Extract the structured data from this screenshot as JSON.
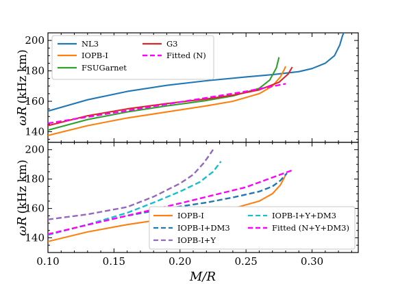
{
  "chart_data": [
    {
      "type": "line",
      "panel": "top",
      "xlabel": "M/R",
      "ylabel_math": "ωR",
      "ylabel_unit": "(kHz km)",
      "xlim": [
        0.1,
        0.335
      ],
      "ylim": [
        133,
        205
      ],
      "xticks": [
        "0.10",
        "0.15",
        "0.20",
        "0.25",
        "0.30"
      ],
      "yticks": [
        "140",
        "160",
        "180",
        "200"
      ],
      "legend_placement": "top-left",
      "series": [
        {
          "name": "NL3",
          "color": "#1f77b4",
          "dash": "solid",
          "points": [
            [
              0.1,
              153.5
            ],
            [
              0.13,
              161
            ],
            [
              0.16,
              166.5
            ],
            [
              0.19,
              170.5
            ],
            [
              0.22,
              173.5
            ],
            [
              0.25,
              176
            ],
            [
              0.27,
              177.5
            ],
            [
              0.29,
              179.5
            ],
            [
              0.3,
              181.5
            ],
            [
              0.31,
              185
            ],
            [
              0.317,
              190
            ],
            [
              0.321,
              197
            ],
            [
              0.323,
              203
            ],
            [
              0.325,
              207
            ]
          ]
        },
        {
          "name": "IOPB-I",
          "color": "#ff7f0e",
          "dash": "solid",
          "points": [
            [
              0.1,
              137.5
            ],
            [
              0.13,
              144
            ],
            [
              0.16,
              149
            ],
            [
              0.19,
              153
            ],
            [
              0.22,
              157
            ],
            [
              0.24,
              160
            ],
            [
              0.26,
              165
            ],
            [
              0.27,
              170
            ],
            [
              0.276,
              176
            ],
            [
              0.279,
              181
            ],
            [
              0.28,
              183
            ]
          ]
        },
        {
          "name": "FSUGarnet",
          "color": "#2ca02c",
          "dash": "solid",
          "points": [
            [
              0.1,
              141
            ],
            [
              0.13,
              148
            ],
            [
              0.16,
              153
            ],
            [
              0.19,
              157
            ],
            [
              0.22,
              160.5
            ],
            [
              0.24,
              163.5
            ],
            [
              0.26,
              168.5
            ],
            [
              0.268,
              174
            ],
            [
              0.273,
              182
            ],
            [
              0.275,
              189
            ]
          ]
        },
        {
          "name": "G3",
          "color": "#d62728",
          "dash": "solid",
          "points": [
            [
              0.1,
              144
            ],
            [
              0.13,
              150.5
            ],
            [
              0.16,
              155
            ],
            [
              0.19,
              158.5
            ],
            [
              0.22,
              161.5
            ],
            [
              0.24,
              164
            ],
            [
              0.26,
              167.5
            ],
            [
              0.275,
              172.5
            ],
            [
              0.282,
              178
            ],
            [
              0.285,
              182.5
            ]
          ]
        },
        {
          "name": "Fitted (N)",
          "color": "#ff00ff",
          "dash": "dashed",
          "points": [
            [
              0.1,
              145.5
            ],
            [
              0.15,
              152.5
            ],
            [
              0.2,
              159.5
            ],
            [
              0.25,
              166.5
            ],
            [
              0.28,
              171.5
            ]
          ]
        }
      ]
    },
    {
      "type": "line",
      "panel": "bottom",
      "xlabel": "M/R",
      "ylabel_math": "ωR",
      "ylabel_unit": "(kHz km)",
      "xlim": [
        0.1,
        0.335
      ],
      "ylim": [
        130,
        205
      ],
      "xticks": [
        "0.10",
        "0.15",
        "0.20",
        "0.25",
        "0.30"
      ],
      "yticks": [
        "140",
        "160",
        "180",
        "200"
      ],
      "legend_placement": "bottom-right",
      "series": [
        {
          "name": "IOPB-I",
          "color": "#ff7f0e",
          "dash": "solid",
          "points": [
            [
              0.1,
              137.5
            ],
            [
              0.13,
              144
            ],
            [
              0.16,
              149
            ],
            [
              0.19,
              153
            ],
            [
              0.22,
              157
            ],
            [
              0.24,
              160
            ],
            [
              0.26,
              165
            ],
            [
              0.27,
              170
            ],
            [
              0.276,
              176
            ],
            [
              0.279,
              181
            ],
            [
              0.28,
              183
            ]
          ]
        },
        {
          "name": "IOPB-I+DM3",
          "color": "#1f77b4",
          "dash": "dashed",
          "points": [
            [
              0.1,
              142
            ],
            [
              0.13,
              149
            ],
            [
              0.16,
              155
            ],
            [
              0.19,
              160
            ],
            [
              0.22,
              164
            ],
            [
              0.24,
              167.5
            ],
            [
              0.26,
              171.5
            ],
            [
              0.27,
              175
            ],
            [
              0.276,
              179
            ],
            [
              0.281,
              184
            ]
          ]
        },
        {
          "name": "IOPB-I+Y",
          "color": "#9467bd",
          "dash": "dashed",
          "points": [
            [
              0.1,
              152.5
            ],
            [
              0.13,
              156
            ],
            [
              0.16,
              161
            ],
            [
              0.18,
              168
            ],
            [
              0.2,
              177
            ],
            [
              0.21,
              183
            ],
            [
              0.218,
              191
            ],
            [
              0.222,
              196
            ],
            [
              0.225,
              200
            ]
          ]
        },
        {
          "name": "IOPB-I+Y+DM3",
          "color": "#17becf",
          "dash": "dashed",
          "points": [
            [
              0.1,
              142
            ],
            [
              0.13,
              149
            ],
            [
              0.16,
              157
            ],
            [
              0.18,
              164
            ],
            [
              0.2,
              171.5
            ],
            [
              0.215,
              178
            ],
            [
              0.225,
              185
            ],
            [
              0.231,
              192
            ]
          ]
        },
        {
          "name": "Fitted (N+Y+DM3)",
          "color": "#ff00ff",
          "dash": "dashed",
          "points": [
            [
              0.1,
              142.5
            ],
            [
              0.15,
              153
            ],
            [
              0.2,
              163.5
            ],
            [
              0.25,
              174.5
            ],
            [
              0.285,
              186
            ]
          ]
        }
      ]
    }
  ]
}
